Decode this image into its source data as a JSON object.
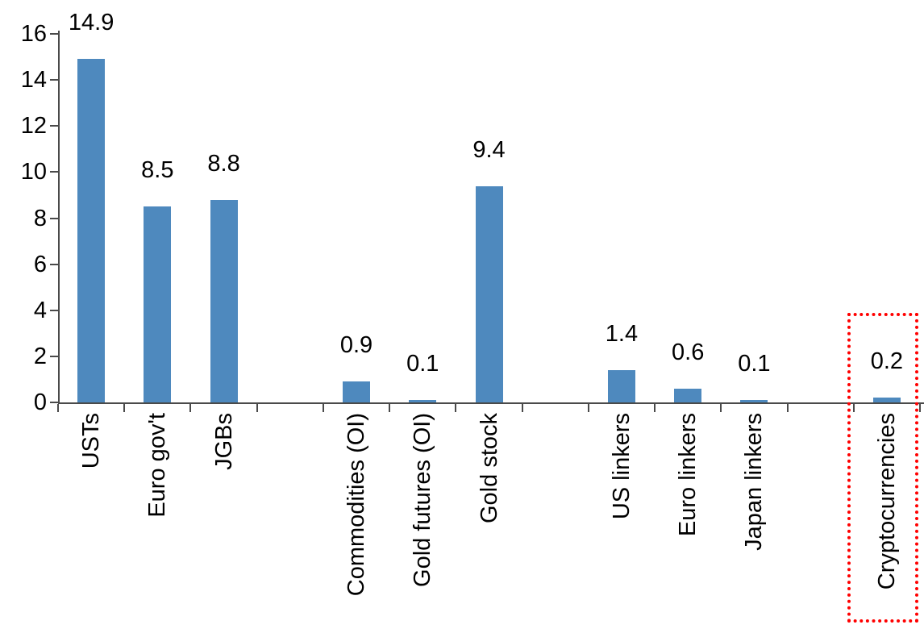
{
  "chart_data": {
    "type": "bar",
    "title": "",
    "xlabel": "",
    "ylabel": "",
    "categories": [
      "USTs",
      "Euro gov't",
      "JGBs",
      "",
      "Commodities (OI)",
      "Gold futures (OI)",
      "Gold stock",
      "",
      "US linkers",
      "Euro linkers",
      "Japan linkers",
      "",
      "Cryptocurrencies"
    ],
    "values": [
      14.9,
      8.5,
      8.8,
      null,
      0.9,
      0.1,
      9.4,
      null,
      1.4,
      0.6,
      0.1,
      null,
      0.2
    ],
    "value_labels": [
      "14.9",
      "8.5",
      "8.8",
      null,
      "0.9",
      "0.1",
      "9.4",
      null,
      "1.4",
      "0.6",
      "0.1",
      null,
      "0.2"
    ],
    "ylim": [
      0,
      16
    ],
    "yticks": [
      0,
      2,
      4,
      6,
      8,
      10,
      12,
      14,
      16
    ],
    "grid": false,
    "legend": false,
    "bar_color": "#4E89BE",
    "axis_color": "#4a4a4a",
    "text_color": "#000000",
    "highlight": {
      "category": "Cryptocurrencies",
      "box_color": "#FF0000",
      "style": "dotted-box"
    }
  }
}
